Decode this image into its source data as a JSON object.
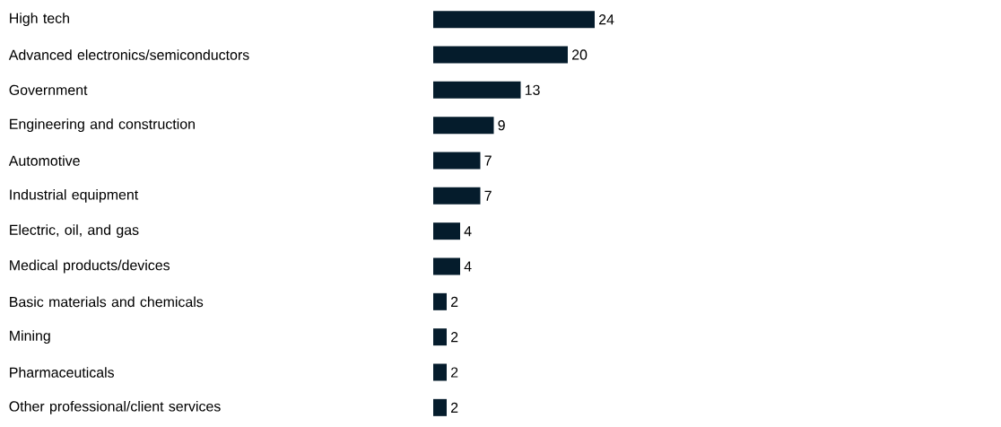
{
  "chart_data": {
    "type": "bar",
    "orientation": "horizontal",
    "categories": [
      "High tech",
      "Advanced electronics/semiconductors",
      "Government",
      "Engineering and construction",
      "Automotive",
      "Industrial equipment",
      "Electric, oil, and gas",
      "Medical products/devices",
      "Basic materials and chemicals",
      "Mining",
      "Pharmaceuticals",
      "Other professional/client services"
    ],
    "values": [
      24,
      20,
      13,
      9,
      7,
      7,
      4,
      4,
      2,
      2,
      2,
      2
    ],
    "color": "#051c2c",
    "data_labels": true,
    "tick_labels": "y"
  }
}
